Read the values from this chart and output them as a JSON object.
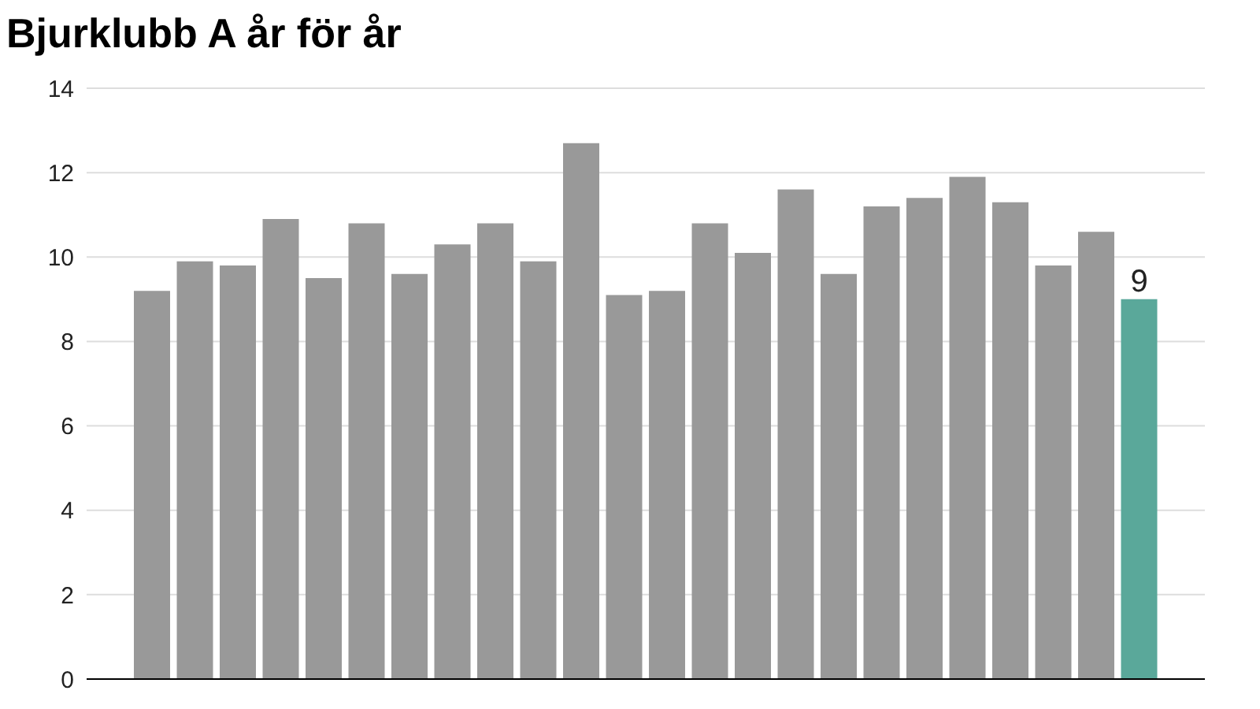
{
  "chart_data": {
    "type": "bar",
    "title": "Bjurklubb A år för år",
    "categories": [
      null,
      null,
      null,
      null,
      null,
      null,
      null,
      null,
      null,
      null,
      null,
      null,
      null,
      null,
      null,
      null,
      null,
      null,
      null,
      null,
      null,
      null,
      null,
      null
    ],
    "values": [
      9.2,
      9.9,
      9.8,
      10.9,
      9.5,
      10.8,
      9.6,
      10.3,
      10.8,
      9.9,
      12.7,
      9.1,
      9.2,
      10.8,
      10.1,
      11.6,
      9.6,
      11.2,
      11.4,
      11.9,
      11.3,
      9.8,
      10.6,
      9.0
    ],
    "colors": [
      "#999999",
      "#999999",
      "#999999",
      "#999999",
      "#999999",
      "#999999",
      "#999999",
      "#999999",
      "#999999",
      "#999999",
      "#999999",
      "#999999",
      "#999999",
      "#999999",
      "#999999",
      "#999999",
      "#999999",
      "#999999",
      "#999999",
      "#999999",
      "#999999",
      "#999999",
      "#999999",
      "#5aa89a"
    ],
    "value_labels": [
      null,
      null,
      null,
      null,
      null,
      null,
      null,
      null,
      null,
      null,
      null,
      null,
      null,
      null,
      null,
      null,
      null,
      null,
      null,
      null,
      null,
      null,
      null,
      "9"
    ],
    "ylim": [
      0,
      14
    ],
    "yticks": [
      0,
      2,
      4,
      6,
      8,
      10,
      12,
      14
    ],
    "grid": "y"
  }
}
